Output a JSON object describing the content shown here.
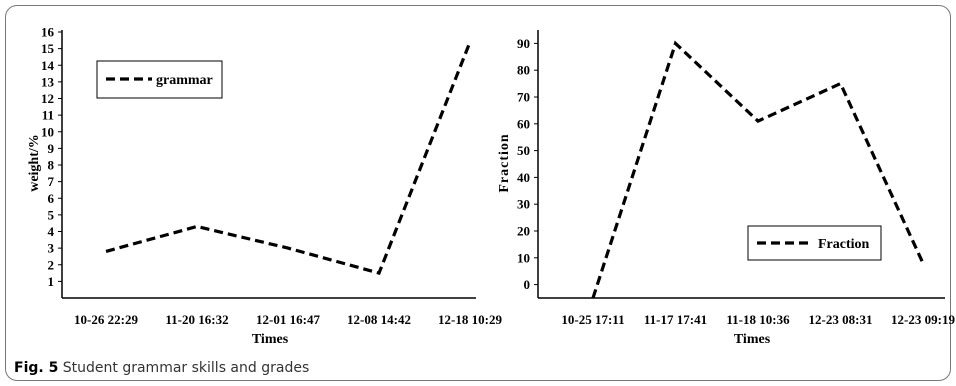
{
  "chart_data": [
    {
      "type": "line",
      "categories": [
        "10-26 22:29",
        "11-20 16:32",
        "12-01 16:47",
        "12-08 14:42",
        "12-18 10:29"
      ],
      "series": [
        {
          "name": "grammar",
          "values": [
            2.8,
            4.3,
            3.0,
            1.5,
            15.4
          ],
          "style": "dashed",
          "color": "#000000"
        }
      ],
      "xlabel": "Times",
      "ylabel": "weight/%",
      "ylim": [
        0,
        16
      ],
      "yticks": [
        1,
        2,
        3,
        4,
        5,
        6,
        7,
        8,
        9,
        10,
        11,
        12,
        13,
        14,
        15,
        16
      ],
      "legend": "top-left",
      "grid": false
    },
    {
      "type": "line",
      "categories": [
        "10-25 17:11",
        "11-17 17:41",
        "11-18 10:36",
        "12-23 08:31",
        "12-23 09:19"
      ],
      "series": [
        {
          "name": "Fraction",
          "values": [
            -5,
            90,
            61,
            75,
            8
          ],
          "style": "dashed",
          "color": "#000000"
        }
      ],
      "xlabel": "Times",
      "ylabel": "Fraction",
      "ylim": [
        -5,
        95
      ],
      "yticks": [
        0,
        10,
        20,
        30,
        40,
        50,
        60,
        70,
        80,
        90
      ],
      "legend": "bottom-right",
      "grid": false
    }
  ],
  "caption": {
    "label": "Fig. 5",
    "text": " Student grammar skills and grades"
  }
}
